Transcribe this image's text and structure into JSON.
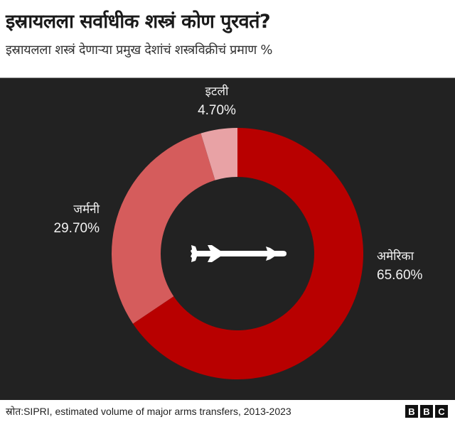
{
  "header": {
    "title": "इस्रायलला सर्वाधीक शस्त्रं कोण पुरवतं?",
    "subtitle": "इस्रायलला शस्त्रं देणाऱ्या प्रमुख देशांचं शस्त्रविक्रीचं प्रमाण %"
  },
  "labels": {
    "italy_name": "इटली",
    "italy_value": "4.70%",
    "germany_name": "जर्मनी",
    "germany_value": "29.70%",
    "usa_name": "अमेरिका",
    "usa_value": "65.60%"
  },
  "footer": {
    "source": "स्रोत:SIPRI, estimated volume of major arms transfers, 2013-2023",
    "logo_letters": [
      "B",
      "B",
      "C"
    ]
  },
  "icons": {
    "center": "missile-icon"
  },
  "colors": {
    "background_panel": "#222222",
    "usa": "#b80000",
    "germany": "#d55c5c",
    "italy": "#e8a2a5",
    "label_text": "#f2f2f2"
  },
  "chart_data": {
    "type": "pie",
    "variant": "donut",
    "title": "इस्रायलला सर्वाधीक शस्त्रं कोण पुरवतं?",
    "subtitle": "इस्रायलला शस्त्रं देणाऱ्या प्रमुख देशांचं शस्त्रविक्रीचं प्रमाण %",
    "categories": [
      "अमेरिका",
      "जर्मनी",
      "इटली"
    ],
    "categories_en": [
      "USA",
      "Germany",
      "Italy"
    ],
    "values": [
      65.6,
      29.7,
      4.7
    ],
    "unit": "%",
    "colors": [
      "#b80000",
      "#d55c5c",
      "#e8a2a5"
    ],
    "start_angle": "top, clockwise",
    "source": "SIPRI, estimated volume of major arms transfers, 2013-2023"
  }
}
